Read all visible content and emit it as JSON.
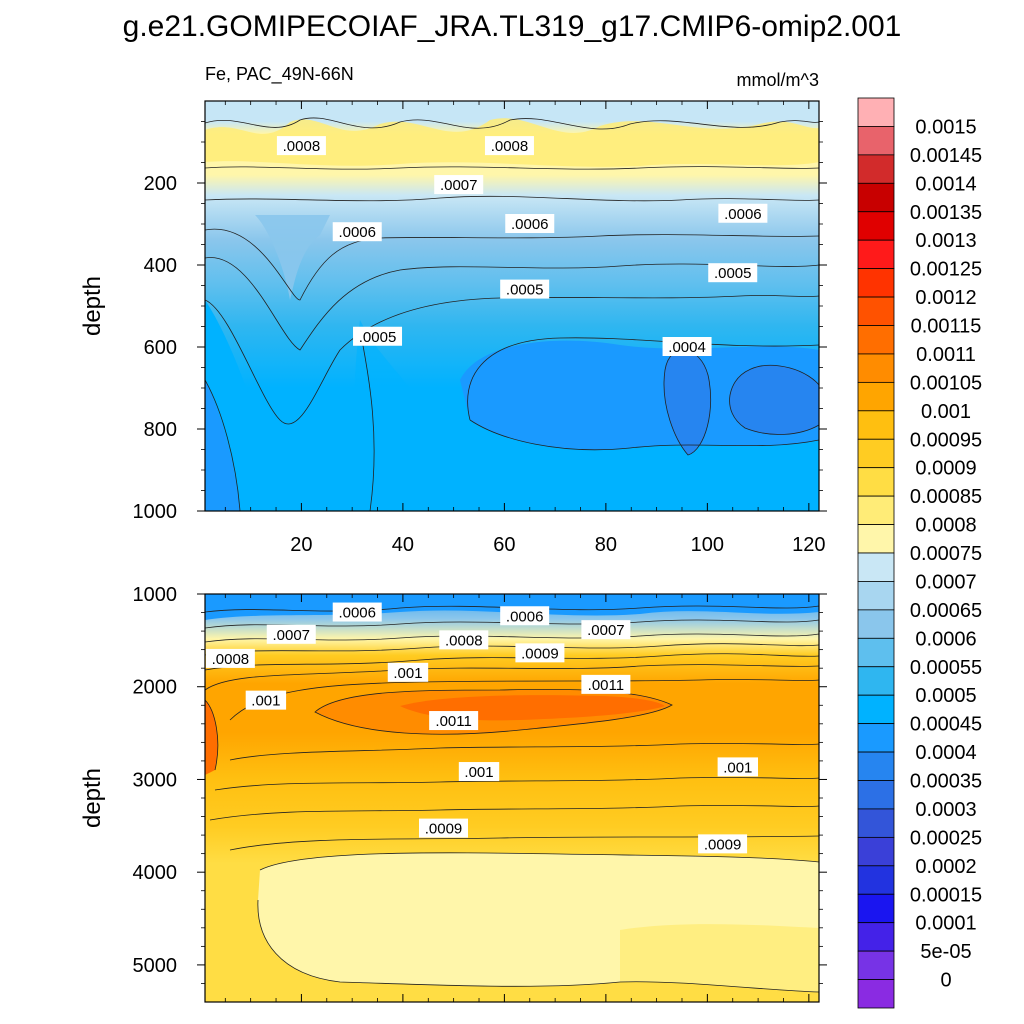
{
  "title": "g.e21.GOMIPECOIAF_JRA.TL319_g17.CMIP6-omip2.001",
  "subtitle_left": "Fe, PAC_49N-66N",
  "units": "mmol/m^3",
  "chart_data": [
    {
      "type": "heatmap",
      "panel": "upper",
      "ylabel": "depth",
      "xlim": [
        1,
        122
      ],
      "ylim": [
        0,
        1000
      ],
      "y_inverted": true,
      "x_ticks": [
        20,
        40,
        60,
        80,
        100,
        120
      ],
      "y_ticks": [
        200,
        400,
        600,
        800,
        1000
      ],
      "contour_labels": [
        {
          "text": ".0008",
          "x": 20,
          "y": 110
        },
        {
          "text": ".0008",
          "x": 61,
          "y": 110
        },
        {
          "text": ".0007",
          "x": 51,
          "y": 205
        },
        {
          "text": ".0006",
          "x": 31,
          "y": 320
        },
        {
          "text": ".0006",
          "x": 65,
          "y": 300
        },
        {
          "text": ".0006",
          "x": 107,
          "y": 275
        },
        {
          "text": ".0005",
          "x": 64,
          "y": 460
        },
        {
          "text": ".0005",
          "x": 105,
          "y": 420
        },
        {
          "text": ".0005",
          "x": 35,
          "y": 575
        },
        {
          "text": ".0004",
          "x": 96,
          "y": 600
        }
      ]
    },
    {
      "type": "heatmap",
      "panel": "lower",
      "ylabel": "depth",
      "xlim": [
        1,
        122
      ],
      "ylim": [
        1000,
        5400
      ],
      "y_inverted": true,
      "x_ticks": [
        20,
        40,
        60,
        80,
        100,
        120
      ],
      "y_ticks": [
        1000,
        2000,
        3000,
        4000,
        5000
      ],
      "contour_labels": [
        {
          "text": ".0006",
          "x": 31,
          "y": 1200
        },
        {
          "text": ".0006",
          "x": 64,
          "y": 1240
        },
        {
          "text": ".0007",
          "x": 18,
          "y": 1440
        },
        {
          "text": ".0007",
          "x": 80,
          "y": 1390
        },
        {
          "text": ".0008",
          "x": 6,
          "y": 1700
        },
        {
          "text": ".0008",
          "x": 52,
          "y": 1500
        },
        {
          "text": ".0009",
          "x": 67,
          "y": 1640
        },
        {
          "text": ".001",
          "x": 41,
          "y": 1850
        },
        {
          "text": ".0011",
          "x": 80,
          "y": 1980
        },
        {
          "text": ".001",
          "x": 13,
          "y": 2150
        },
        {
          "text": ".0011",
          "x": 50,
          "y": 2370
        },
        {
          "text": ".001",
          "x": 55,
          "y": 2920
        },
        {
          "text": ".001",
          "x": 106,
          "y": 2870
        },
        {
          "text": ".0009",
          "x": 48,
          "y": 3530
        },
        {
          "text": ".0009",
          "x": 103,
          "y": 3700
        }
      ]
    }
  ],
  "colorbar": {
    "labels": [
      "0.0015",
      "0.00145",
      "0.0014",
      "0.00135",
      "0.0013",
      "0.00125",
      "0.0012",
      "0.00115",
      "0.0011",
      "0.00105",
      "0.001",
      "0.00095",
      "0.0009",
      "0.00085",
      "0.0008",
      "0.00075",
      "0.0007",
      "0.00065",
      "0.0006",
      "0.00055",
      "0.0005",
      "0.00045",
      "0.0004",
      "0.00035",
      "0.0003",
      "0.00025",
      "0.0002",
      "0.00015",
      "0.0001",
      "5e-05",
      "0"
    ],
    "colors_top_to_bottom": [
      "#FFB0B4",
      "#E8636B",
      "#D22B2B",
      "#C80000",
      "#E00000",
      "#FF1A1A",
      "#FF3300",
      "#FF5200",
      "#FF6E00",
      "#FF8C00",
      "#FFA500",
      "#FFBF10",
      "#FFCC22",
      "#FFDD44",
      "#FFEC77",
      "#FFF6AA",
      "#C9E7F5",
      "#A8D6F0",
      "#8AC6EC",
      "#5EBFEE",
      "#2FB6F0",
      "#00B2FF",
      "#1A9AFF",
      "#2685F0",
      "#2C70E6",
      "#3355D9",
      "#3A40D8",
      "#2233E0",
      "#1A15F0",
      "#4422E8",
      "#7733E6"
    ]
  },
  "colors": {
    "upper_gradient": [
      "#C6E6F6",
      "#FFF6AA",
      "#C9E7F5",
      "#5EBFEE",
      "#2FB6F0",
      "#00B2FF",
      "#1A9AFF"
    ],
    "lower_gradient": [
      "#3FA6F2",
      "#8AC6EC",
      "#FFEC77",
      "#FFBF10",
      "#FF8C00",
      "#FFBF10",
      "#FFDD44",
      "#FFF6AA",
      "#FFEC77"
    ]
  }
}
